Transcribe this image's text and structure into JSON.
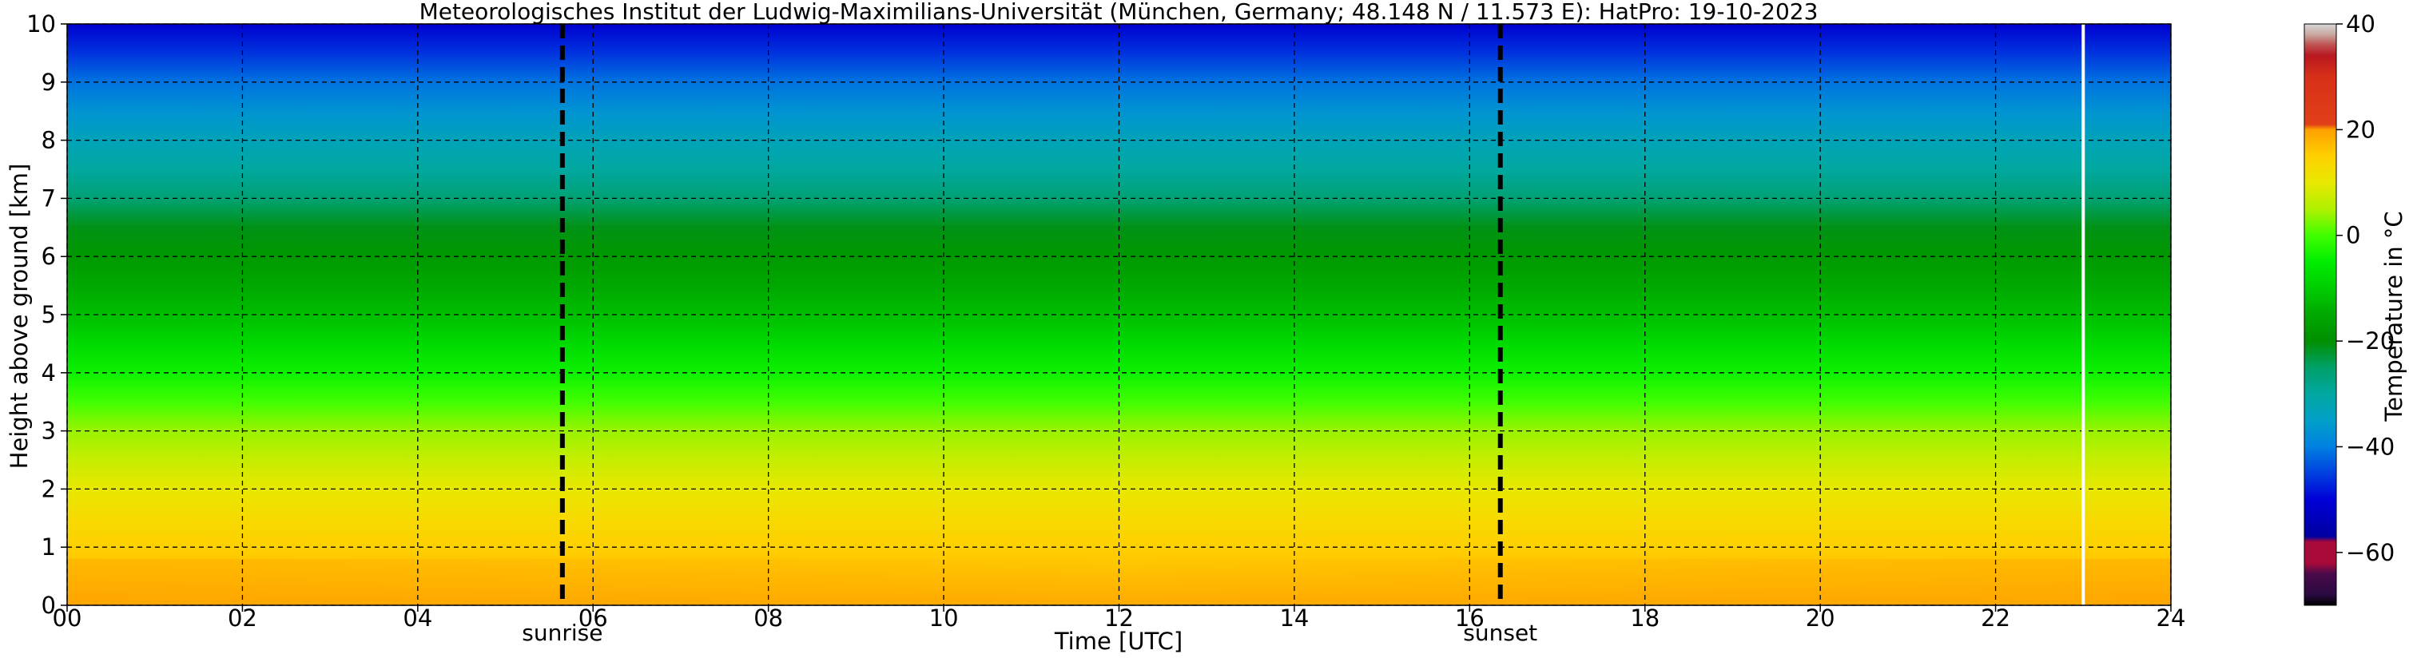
{
  "chart_data": {
    "type": "heatmap",
    "title": "Meteorologisches Institut der Ludwig-Maximilians-Universität (München, Germany; 48.148 N / 11.573 E):    HatPro: 19-10-2023",
    "xlabel": "Time [UTC]",
    "ylabel": "Height above ground [km]",
    "xlim": [
      0,
      24
    ],
    "ylim": [
      0,
      10
    ],
    "x_ticks": [
      "00",
      "02",
      "04",
      "06",
      "08",
      "10",
      "12",
      "14",
      "16",
      "18",
      "20",
      "22",
      "24"
    ],
    "y_ticks": [
      "0",
      "1",
      "2",
      "3",
      "4",
      "5",
      "6",
      "7",
      "8",
      "9",
      "10"
    ],
    "grid": true,
    "colorbar": {
      "label": "Temperature in °C",
      "range": [
        -70,
        40
      ],
      "ticks": [
        "40",
        "20",
        "0",
        "−20",
        "−40",
        "−60"
      ],
      "stops": [
        {
          "value": -70,
          "color": "#000000"
        },
        {
          "value": -68,
          "color": "#2a0a40"
        },
        {
          "value": -64,
          "color": "#4a0a4a"
        },
        {
          "value": -62,
          "color": "#a80a3a"
        },
        {
          "value": -58,
          "color": "#a80a3a"
        },
        {
          "value": -57,
          "color": "#0000a0"
        },
        {
          "value": -50,
          "color": "#0000d8"
        },
        {
          "value": -45,
          "color": "#0040e0"
        },
        {
          "value": -40,
          "color": "#0080e0"
        },
        {
          "value": -35,
          "color": "#00a0c8"
        },
        {
          "value": -30,
          "color": "#00a8a0"
        },
        {
          "value": -25,
          "color": "#00a068"
        },
        {
          "value": -20,
          "color": "#008f00"
        },
        {
          "value": -15,
          "color": "#00a800"
        },
        {
          "value": -10,
          "color": "#00cc00"
        },
        {
          "value": -5,
          "color": "#00ee00"
        },
        {
          "value": 0,
          "color": "#40ff00"
        },
        {
          "value": 5,
          "color": "#b0f000"
        },
        {
          "value": 10,
          "color": "#e8e800"
        },
        {
          "value": 15,
          "color": "#ffd000"
        },
        {
          "value": 20,
          "color": "#ffa000"
        },
        {
          "value": 21,
          "color": "#e04018"
        },
        {
          "value": 30,
          "color": "#d83018"
        },
        {
          "value": 34,
          "color": "#b81820"
        },
        {
          "value": 36,
          "color": "#c05050"
        },
        {
          "value": 38,
          "color": "#c8a8a0"
        },
        {
          "value": 40,
          "color": "#d8d8d8"
        }
      ]
    },
    "temperature_profile": [
      {
        "height_km": 0.0,
        "temp_c": 19
      },
      {
        "height_km": 0.5,
        "temp_c": 17
      },
      {
        "height_km": 1.0,
        "temp_c": 15
      },
      {
        "height_km": 1.5,
        "temp_c": 13
      },
      {
        "height_km": 2.0,
        "temp_c": 10
      },
      {
        "height_km": 2.5,
        "temp_c": 7
      },
      {
        "height_km": 3.0,
        "temp_c": 4
      },
      {
        "height_km": 3.5,
        "temp_c": 0
      },
      {
        "height_km": 4.0,
        "temp_c": -4
      },
      {
        "height_km": 4.5,
        "temp_c": -8
      },
      {
        "height_km": 5.0,
        "temp_c": -12
      },
      {
        "height_km": 5.5,
        "temp_c": -15
      },
      {
        "height_km": 6.0,
        "temp_c": -18
      },
      {
        "height_km": 6.5,
        "temp_c": -21
      },
      {
        "height_km": 7.0,
        "temp_c": -26
      },
      {
        "height_km": 7.5,
        "temp_c": -30
      },
      {
        "height_km": 8.0,
        "temp_c": -33
      },
      {
        "height_km": 8.5,
        "temp_c": -37
      },
      {
        "height_km": 9.0,
        "temp_c": -41
      },
      {
        "height_km": 9.5,
        "temp_c": -46
      },
      {
        "height_km": 10.0,
        "temp_c": -51
      }
    ],
    "markers": [
      {
        "label": "sunrise",
        "time_h": 5.65
      },
      {
        "label": "sunset",
        "time_h": 16.35
      }
    ],
    "data_gap_time_h": 23.0
  }
}
